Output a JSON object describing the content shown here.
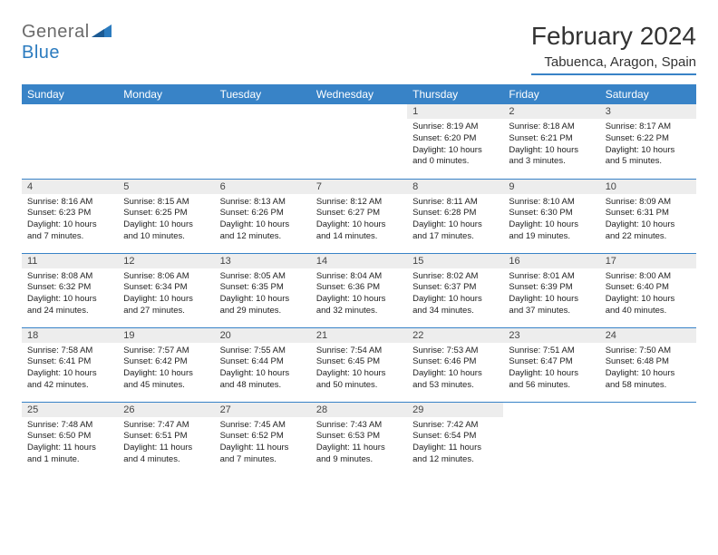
{
  "logo": {
    "text1": "General",
    "text2": "Blue"
  },
  "title": "February 2024",
  "location": "Tabuenca, Aragon, Spain",
  "colors": {
    "header_bg": "#3883c7",
    "header_text": "#ffffff",
    "daynum_bg": "#ededed",
    "border": "#3883c7",
    "logo_gray": "#6b6b6b",
    "logo_blue": "#2b7bbf"
  },
  "weekdays": [
    "Sunday",
    "Monday",
    "Tuesday",
    "Wednesday",
    "Thursday",
    "Friday",
    "Saturday"
  ],
  "first_weekday_index": 4,
  "days_in_month": 29,
  "days": {
    "1": {
      "sunrise": "8:19 AM",
      "sunset": "6:20 PM",
      "daylight": "10 hours and 0 minutes."
    },
    "2": {
      "sunrise": "8:18 AM",
      "sunset": "6:21 PM",
      "daylight": "10 hours and 3 minutes."
    },
    "3": {
      "sunrise": "8:17 AM",
      "sunset": "6:22 PM",
      "daylight": "10 hours and 5 minutes."
    },
    "4": {
      "sunrise": "8:16 AM",
      "sunset": "6:23 PM",
      "daylight": "10 hours and 7 minutes."
    },
    "5": {
      "sunrise": "8:15 AM",
      "sunset": "6:25 PM",
      "daylight": "10 hours and 10 minutes."
    },
    "6": {
      "sunrise": "8:13 AM",
      "sunset": "6:26 PM",
      "daylight": "10 hours and 12 minutes."
    },
    "7": {
      "sunrise": "8:12 AM",
      "sunset": "6:27 PM",
      "daylight": "10 hours and 14 minutes."
    },
    "8": {
      "sunrise": "8:11 AM",
      "sunset": "6:28 PM",
      "daylight": "10 hours and 17 minutes."
    },
    "9": {
      "sunrise": "8:10 AM",
      "sunset": "6:30 PM",
      "daylight": "10 hours and 19 minutes."
    },
    "10": {
      "sunrise": "8:09 AM",
      "sunset": "6:31 PM",
      "daylight": "10 hours and 22 minutes."
    },
    "11": {
      "sunrise": "8:08 AM",
      "sunset": "6:32 PM",
      "daylight": "10 hours and 24 minutes."
    },
    "12": {
      "sunrise": "8:06 AM",
      "sunset": "6:34 PM",
      "daylight": "10 hours and 27 minutes."
    },
    "13": {
      "sunrise": "8:05 AM",
      "sunset": "6:35 PM",
      "daylight": "10 hours and 29 minutes."
    },
    "14": {
      "sunrise": "8:04 AM",
      "sunset": "6:36 PM",
      "daylight": "10 hours and 32 minutes."
    },
    "15": {
      "sunrise": "8:02 AM",
      "sunset": "6:37 PM",
      "daylight": "10 hours and 34 minutes."
    },
    "16": {
      "sunrise": "8:01 AM",
      "sunset": "6:39 PM",
      "daylight": "10 hours and 37 minutes."
    },
    "17": {
      "sunrise": "8:00 AM",
      "sunset": "6:40 PM",
      "daylight": "10 hours and 40 minutes."
    },
    "18": {
      "sunrise": "7:58 AM",
      "sunset": "6:41 PM",
      "daylight": "10 hours and 42 minutes."
    },
    "19": {
      "sunrise": "7:57 AM",
      "sunset": "6:42 PM",
      "daylight": "10 hours and 45 minutes."
    },
    "20": {
      "sunrise": "7:55 AM",
      "sunset": "6:44 PM",
      "daylight": "10 hours and 48 minutes."
    },
    "21": {
      "sunrise": "7:54 AM",
      "sunset": "6:45 PM",
      "daylight": "10 hours and 50 minutes."
    },
    "22": {
      "sunrise": "7:53 AM",
      "sunset": "6:46 PM",
      "daylight": "10 hours and 53 minutes."
    },
    "23": {
      "sunrise": "7:51 AM",
      "sunset": "6:47 PM",
      "daylight": "10 hours and 56 minutes."
    },
    "24": {
      "sunrise": "7:50 AM",
      "sunset": "6:48 PM",
      "daylight": "10 hours and 58 minutes."
    },
    "25": {
      "sunrise": "7:48 AM",
      "sunset": "6:50 PM",
      "daylight": "11 hours and 1 minute."
    },
    "26": {
      "sunrise": "7:47 AM",
      "sunset": "6:51 PM",
      "daylight": "11 hours and 4 minutes."
    },
    "27": {
      "sunrise": "7:45 AM",
      "sunset": "6:52 PM",
      "daylight": "11 hours and 7 minutes."
    },
    "28": {
      "sunrise": "7:43 AM",
      "sunset": "6:53 PM",
      "daylight": "11 hours and 9 minutes."
    },
    "29": {
      "sunrise": "7:42 AM",
      "sunset": "6:54 PM",
      "daylight": "11 hours and 12 minutes."
    }
  },
  "labels": {
    "sunrise": "Sunrise:",
    "sunset": "Sunset:",
    "daylight": "Daylight:"
  }
}
